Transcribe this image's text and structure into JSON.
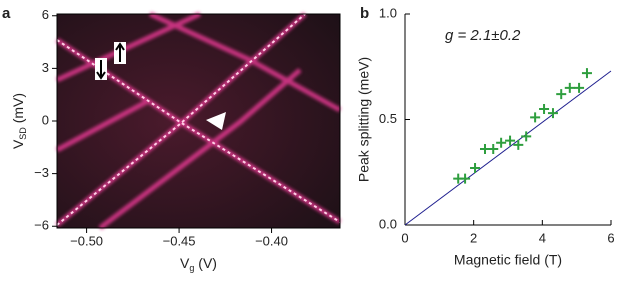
{
  "chart_data": [
    {
      "type": "image",
      "panel": "a",
      "xlabel": [
        "V",
        "g",
        " (V)"
      ],
      "ylabel": [
        "V",
        "SD",
        " (mV)"
      ],
      "xlim": [
        -0.516,
        -0.363
      ],
      "xticks": [
        {
          "value": -0.5,
          "label": "−0.50"
        },
        {
          "value": -0.45,
          "label": "−0.45"
        },
        {
          "value": -0.4,
          "label": "−0.40"
        }
      ],
      "ylim": [
        -6.1,
        6.1
      ],
      "yticks": [
        {
          "value": -6,
          "label": "−6"
        },
        {
          "value": -3,
          "label": "−3"
        },
        0,
        3,
        6
      ]
    },
    {
      "type": "scatter",
      "panel": "b",
      "annotation": "g = 2.1±0.2",
      "xlabel": "Magnetic field (T)",
      "ylabel": "Peak splitting (meV)",
      "xlim": [
        0,
        6
      ],
      "xticks": [
        0,
        2,
        4,
        6
      ],
      "ylim": [
        0,
        1.0
      ],
      "yticks": [
        {
          "value": 0,
          "label": "0.0"
        },
        0.5,
        {
          "value": 1.0,
          "label": "1.0"
        }
      ],
      "color": "#2e9e3e",
      "x": [
        1.55,
        1.75,
        2.04,
        2.33,
        2.57,
        2.8,
        3.06,
        3.3,
        3.53,
        3.79,
        4.05,
        4.31,
        4.55,
        4.8,
        5.07,
        5.3
      ],
      "values": [
        0.22,
        0.22,
        0.27,
        0.36,
        0.36,
        0.39,
        0.4,
        0.38,
        0.42,
        0.51,
        0.55,
        0.53,
        0.62,
        0.65,
        0.65,
        0.72
      ],
      "fit": {
        "x": [
          0,
          6
        ],
        "values": [
          0,
          0.73
        ],
        "color": "#1f1f8f"
      }
    }
  ]
}
